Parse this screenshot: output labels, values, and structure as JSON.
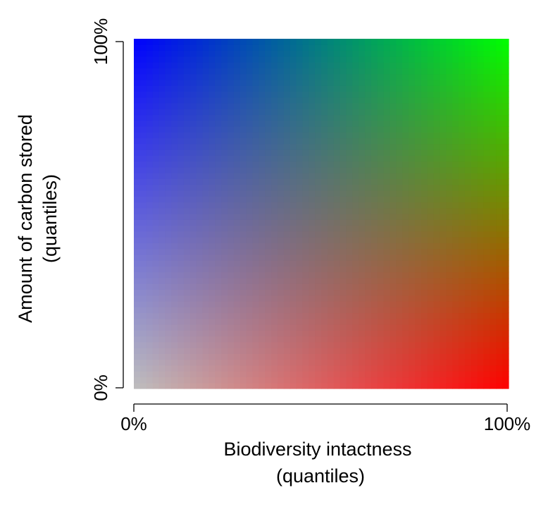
{
  "chart_data": {
    "type": "heatmap",
    "subtype": "bivariate color legend",
    "title": "",
    "xlabel": [
      "Biodiversity intactness",
      "(quantiles)"
    ],
    "ylabel": [
      "Amount of carbon stored",
      "(quantiles)"
    ],
    "xlim": [
      0,
      100
    ],
    "ylim": [
      0,
      100
    ],
    "x_unit": "%",
    "y_unit": "%",
    "x_ticks": [
      "0%",
      "100%"
    ],
    "y_ticks": [
      "0%",
      "100%"
    ],
    "grid": false,
    "legend": "none",
    "corner_colors": {
      "low_x_low_y": "#bebebe",
      "high_x_low_y": "#ff0000",
      "low_x_high_y": "#0000ff",
      "high_x_high_y": "#00ff00"
    },
    "cells_per_axis": 60
  }
}
